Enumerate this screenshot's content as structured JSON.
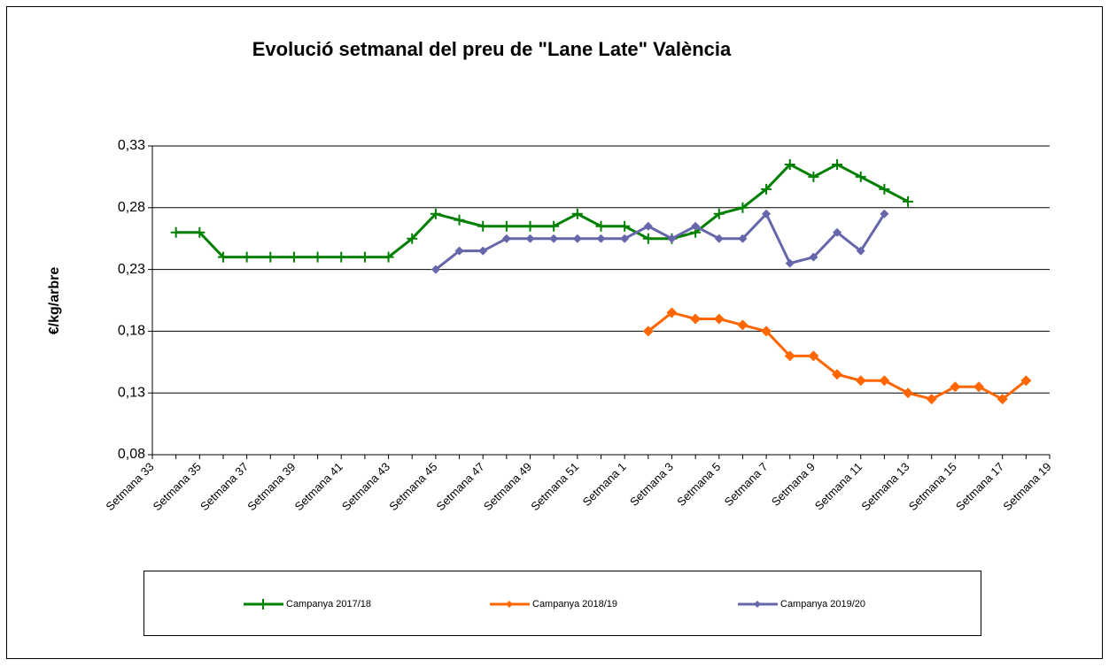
{
  "chart_data": {
    "type": "line",
    "title": "Evolució setmanal del preu de \"Lane Late\"  València",
    "y_label": "€/kg/arbre",
    "categories": [
      "Setmana 33",
      null,
      "Setmana 35",
      null,
      "Setmana 37",
      null,
      "Setmana 39",
      null,
      "Setmana 41",
      null,
      "Setmana 43",
      null,
      "Setmana 45",
      null,
      "Setmana 47",
      null,
      "Setmana 49",
      null,
      "Setmana 51",
      null,
      "Setmana 1",
      null,
      "Setmana 3",
      null,
      "Setmana 5",
      null,
      "Setmana 7",
      null,
      "Setmana 9",
      null,
      "Setmana 11",
      null,
      "Setmana 13",
      null,
      "Setmana 15",
      null,
      "Setmana 17",
      null,
      "Setmana 19"
    ],
    "series": [
      {
        "name": "Campanya 2017/18",
        "color": "#008000",
        "marker": "plus",
        "values": [
          null,
          0.26,
          0.26,
          0.24,
          0.24,
          0.24,
          0.24,
          0.24,
          0.24,
          0.24,
          0.24,
          0.255,
          0.275,
          0.27,
          0.265,
          0.265,
          0.265,
          0.265,
          0.275,
          0.265,
          0.265,
          0.255,
          0.255,
          0.26,
          0.275,
          0.28,
          0.295,
          0.315,
          0.305,
          0.315,
          0.305,
          0.295,
          0.285,
          null,
          null,
          null,
          null,
          null,
          null
        ]
      },
      {
        "name": "Campanya 2018/19",
        "color": "#ff6600",
        "marker": "diamond",
        "values": [
          null,
          null,
          null,
          null,
          null,
          null,
          null,
          null,
          null,
          null,
          null,
          null,
          null,
          null,
          null,
          null,
          null,
          null,
          null,
          null,
          null,
          0.18,
          0.195,
          0.19,
          0.19,
          0.185,
          0.18,
          0.16,
          0.16,
          0.145,
          0.14,
          0.14,
          0.13,
          0.125,
          0.135,
          0.135,
          0.125,
          0.14,
          null
        ]
      },
      {
        "name": "Campanya 2019/20",
        "color": "#6666aa",
        "marker": "diamond",
        "values": [
          null,
          null,
          null,
          null,
          null,
          null,
          null,
          null,
          null,
          null,
          null,
          null,
          0.23,
          0.245,
          0.245,
          0.255,
          0.255,
          0.255,
          0.255,
          0.255,
          0.255,
          0.265,
          0.255,
          0.265,
          0.255,
          0.255,
          0.275,
          0.235,
          0.24,
          0.26,
          0.245,
          0.275,
          null,
          null,
          null,
          null,
          null,
          null,
          null
        ]
      }
    ],
    "ylim": [
      0.08,
      0.33
    ],
    "yticks": [
      {
        "value": 0.08,
        "label": "0,08"
      },
      {
        "value": 0.13,
        "label": "0,13"
      },
      {
        "value": 0.18,
        "label": "0,18"
      },
      {
        "value": 0.23,
        "label": "0,23"
      },
      {
        "value": 0.28,
        "label": "0,28"
      },
      {
        "value": 0.33,
        "label": "0,33"
      }
    ],
    "grid": true,
    "legend": "bottom"
  }
}
